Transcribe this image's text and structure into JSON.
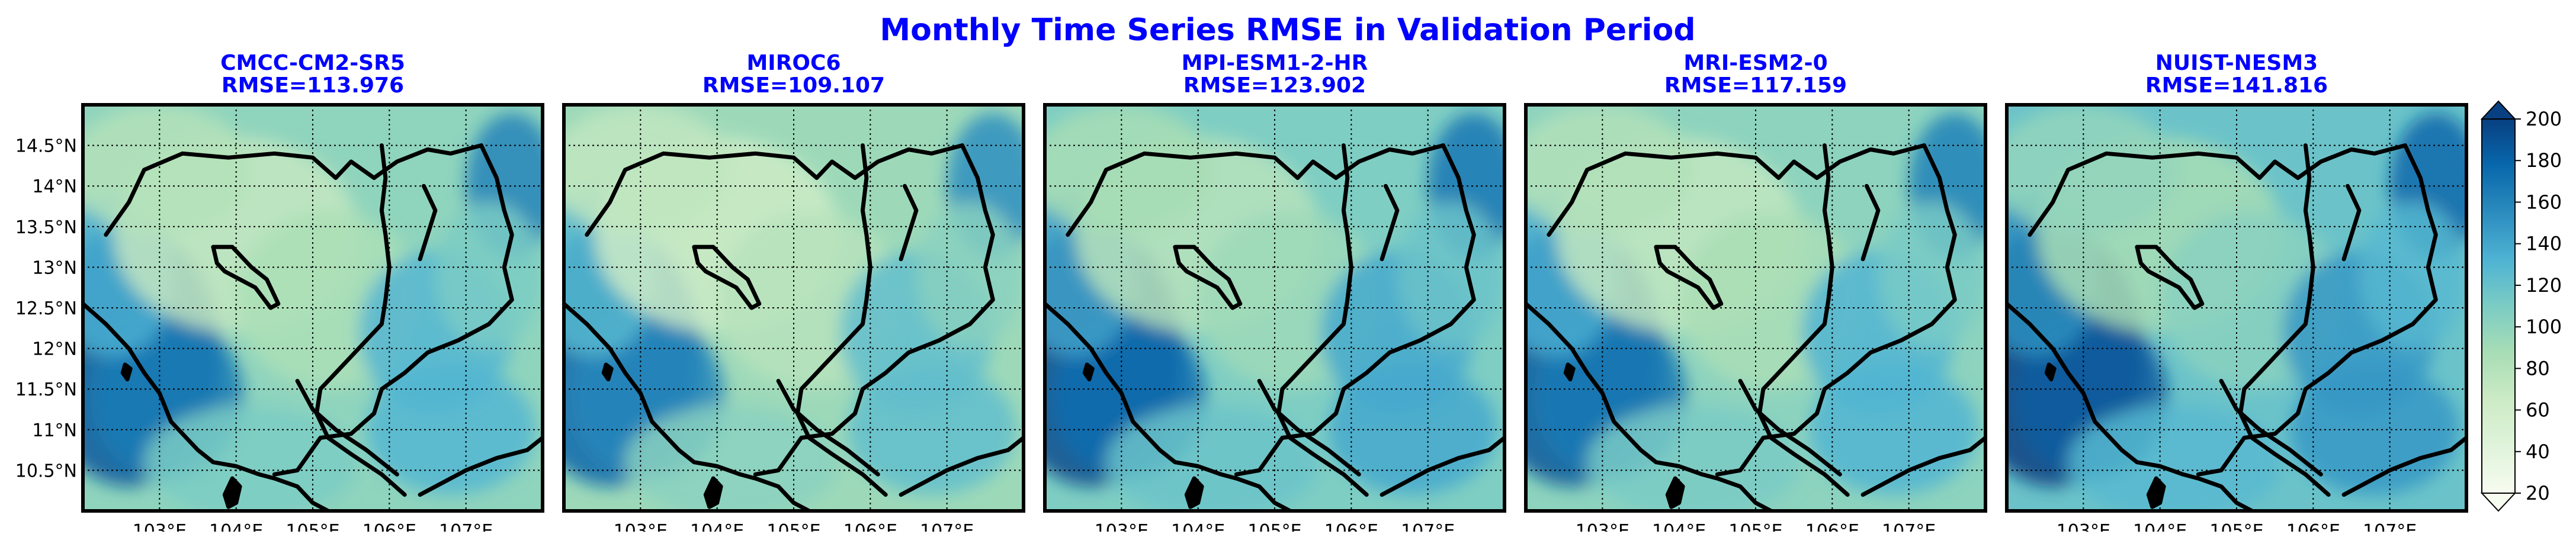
{
  "chart_data": {
    "type": "heatmap",
    "title": "Monthly Time Series RMSE in Validation Period",
    "colors": {
      "title": "#0000ff",
      "panel_title": "#0000ff",
      "coastline": "#000000",
      "grid": "#000000"
    },
    "colormap": "GnBu",
    "panels": [
      {
        "name": "CMCC-CM2-SR5",
        "rmse_label": "RMSE=113.976",
        "rmse": 113.976,
        "base": 100
      },
      {
        "name": "MIROC6",
        "rmse_label": "RMSE=109.107",
        "rmse": 109.107,
        "base": 93
      },
      {
        "name": "MPI-ESM1-2-HR",
        "rmse_label": "RMSE=123.902",
        "rmse": 123.902,
        "base": 108
      },
      {
        "name": "MRI-ESM2-0",
        "rmse_label": "RMSE=117.159",
        "rmse": 117.159,
        "base": 101
      },
      {
        "name": "NUIST-NESM3",
        "rmse_label": "RMSE=141.816",
        "rmse": 141.816,
        "base": 118
      }
    ],
    "x_ticks": [
      {
        "value": 103,
        "label": "103°E"
      },
      {
        "value": 104,
        "label": "104°E"
      },
      {
        "value": 105,
        "label": "105°E"
      },
      {
        "value": 106,
        "label": "106°E"
      },
      {
        "value": 107,
        "label": "107°E"
      }
    ],
    "y_ticks": [
      {
        "value": 14.5,
        "label": "14.5°N"
      },
      {
        "value": 14,
        "label": "14°N"
      },
      {
        "value": 13.5,
        "label": "13.5°N"
      },
      {
        "value": 13,
        "label": "13°N"
      },
      {
        "value": 12.5,
        "label": "12.5°N"
      },
      {
        "value": 12,
        "label": "12°N"
      },
      {
        "value": 11.5,
        "label": "11.5°N"
      },
      {
        "value": 11,
        "label": "11°N"
      },
      {
        "value": 10.5,
        "label": "10.5°N"
      }
    ],
    "xlim": [
      102,
      108
    ],
    "ylim": [
      10,
      15
    ],
    "colorbar": {
      "range": [
        20,
        200
      ],
      "ticks": [
        20,
        40,
        60,
        80,
        100,
        120,
        140,
        160,
        180,
        200
      ],
      "tick_labels": [
        "20",
        "40",
        "60",
        "80",
        "100",
        "120",
        "140",
        "160",
        "180",
        "200"
      ],
      "extend": "both"
    }
  }
}
